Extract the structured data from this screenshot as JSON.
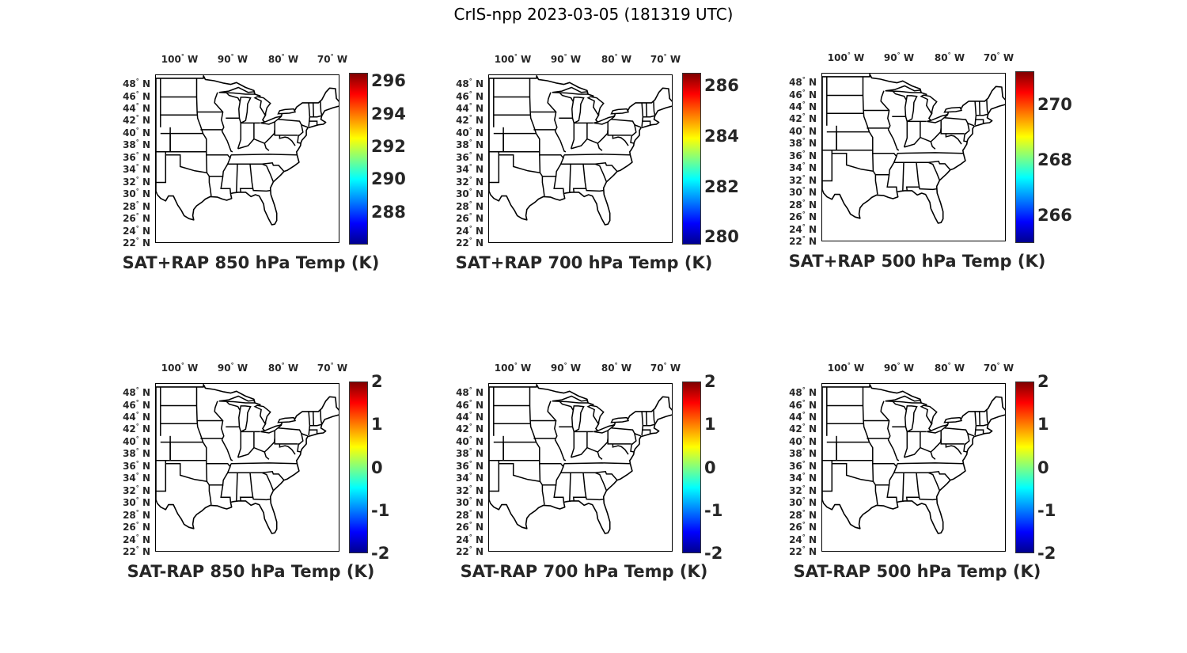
{
  "title": "CrIS-npp 2023-03-05 (181319 UTC)",
  "degree_symbol": "°",
  "lon_ticks": [
    {
      "num": "100",
      "hemi": "W"
    },
    {
      "num": "90",
      "hemi": "W"
    },
    {
      "num": "80",
      "hemi": "W"
    },
    {
      "num": "70",
      "hemi": "W"
    }
  ],
  "lat_ticks": [
    {
      "num": "48",
      "hemi": "N"
    },
    {
      "num": "46",
      "hemi": "N"
    },
    {
      "num": "44",
      "hemi": "N"
    },
    {
      "num": "42",
      "hemi": "N"
    },
    {
      "num": "40",
      "hemi": "N"
    },
    {
      "num": "38",
      "hemi": "N"
    },
    {
      "num": "36",
      "hemi": "N"
    },
    {
      "num": "34",
      "hemi": "N"
    },
    {
      "num": "32",
      "hemi": "N"
    },
    {
      "num": "30",
      "hemi": "N"
    },
    {
      "num": "28",
      "hemi": "N"
    },
    {
      "num": "26",
      "hemi": "N"
    },
    {
      "num": "24",
      "hemi": "N"
    },
    {
      "num": "22",
      "hemi": "N"
    }
  ],
  "map_extent": {
    "lon": [
      -105,
      -67
    ],
    "lat": [
      22,
      49.5
    ]
  },
  "colormap": "jet",
  "panels": [
    {
      "title": "SAT+RAP 850 hPa Temp (K)",
      "colorbar": {
        "range": [
          286.0,
          296.5
        ],
        "ticks": [
          "296",
          "294",
          "292",
          "290",
          "288"
        ],
        "tick_values": [
          296,
          294,
          292,
          290,
          288
        ]
      }
    },
    {
      "title": "SAT+RAP 700 hPa Temp (K)",
      "colorbar": {
        "range": [
          279.7,
          286.5
        ],
        "ticks": [
          "286",
          "284",
          "282",
          "280"
        ],
        "tick_values": [
          286,
          284,
          282,
          280
        ]
      }
    },
    {
      "title": "SAT+RAP 500 hPa Temp (K)",
      "colorbar": {
        "range": [
          265.0,
          271.2
        ],
        "ticks": [
          "270",
          "268",
          "266"
        ],
        "tick_values": [
          270,
          268,
          266
        ]
      }
    },
    {
      "title": "SAT-RAP 850 hPa Temp (K)",
      "colorbar": {
        "range": [
          -2,
          2
        ],
        "ticks": [
          "2",
          "1",
          "0",
          "-1",
          "-2"
        ],
        "tick_values": [
          2,
          1,
          0,
          -1,
          -2
        ]
      }
    },
    {
      "title": "SAT-RAP 700 hPa Temp (K)",
      "colorbar": {
        "range": [
          -2,
          2
        ],
        "ticks": [
          "2",
          "1",
          "0",
          "-1",
          "-2"
        ],
        "tick_values": [
          2,
          1,
          0,
          -1,
          -2
        ]
      }
    },
    {
      "title": "SAT-RAP 500 hPa Temp (K)",
      "colorbar": {
        "range": [
          -2,
          2
        ],
        "ticks": [
          "2",
          "1",
          "0",
          "-1",
          "-2"
        ],
        "tick_values": [
          2,
          1,
          0,
          -1,
          -2
        ]
      }
    }
  ]
}
